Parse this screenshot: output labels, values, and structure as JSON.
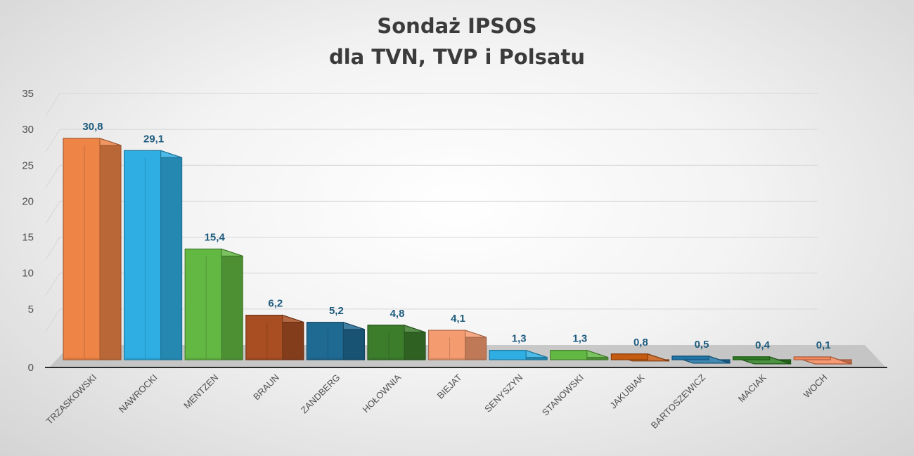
{
  "chart_data": {
    "type": "bar",
    "title": [
      "Sondaż IPSOS",
      "dla TVN, TVP i Polsatu"
    ],
    "xlabel": "",
    "ylabel": "",
    "ylim": [
      0,
      35
    ],
    "yticks": [
      "0",
      "5",
      "10",
      "15",
      "20",
      "25",
      "30",
      "35"
    ],
    "grid": true,
    "legend": "none",
    "categories": [
      "TRZASKOWSKI",
      "NAWROCKI",
      "MENTZEN",
      "BRAUN",
      "ZANDBERG",
      "HOŁOWNIA",
      "BIEJAT",
      "SENYSZYN",
      "STANOWSKI",
      "JAKUBIAK",
      "BARTOSZEWICZ",
      "MACIAK",
      "WOCH"
    ],
    "values": [
      30.8,
      29.1,
      15.4,
      6.2,
      5.2,
      4.8,
      4.1,
      1.3,
      1.3,
      0.8,
      0.5,
      0.4,
      0.1
    ],
    "data_labels": [
      "30,8",
      "29,1",
      "15,4",
      "6,2",
      "5,2",
      "4,8",
      "4,1",
      "1,3",
      "1,3",
      "0,8",
      "0,5",
      "0,4",
      "0,1"
    ],
    "colors": [
      "#ef8447",
      "#2eaee3",
      "#63b843",
      "#a84e22",
      "#1f6a93",
      "#3c7d2c",
      "#f59b70",
      "#2eaee3",
      "#63b843",
      "#c55a11",
      "#1f75a8",
      "#2e7d22",
      "#f4885a"
    ]
  }
}
